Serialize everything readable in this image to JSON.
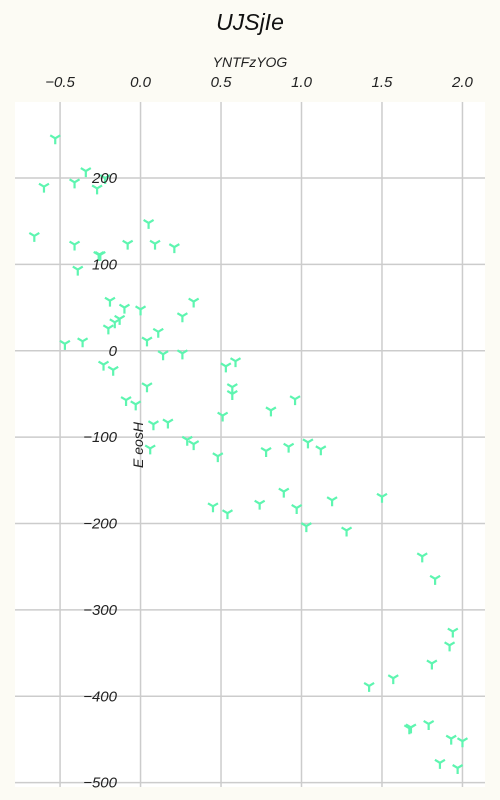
{
  "chart_data": {
    "type": "scatter",
    "title": "UJSjIe",
    "xlabel": "YNTFzYOG",
    "ylabel": "E eosH",
    "x_ticks": [
      -0.5,
      0.0,
      0.5,
      1.0,
      1.5,
      2.0
    ],
    "y_ticks": [
      -500,
      -400,
      -300,
      -200,
      -100,
      0,
      100,
      200
    ],
    "xlim": [
      -0.78,
      2.14
    ],
    "ylim": [
      -505,
      288
    ],
    "grid": true,
    "marker": "tri_down",
    "marker_color": "#5ef5b0",
    "background": "#fcfbf4",
    "plot_background": "#ffffff",
    "series": [
      {
        "x": [
          -0.53,
          -0.6,
          -0.66,
          -0.41,
          -0.34,
          -0.27,
          -0.22,
          -0.41,
          -0.39,
          -0.26,
          0.05,
          -0.08,
          0.09,
          0.21,
          -0.25,
          -0.19,
          -0.1,
          0.0,
          0.26,
          0.33,
          -0.47,
          -0.36,
          -0.16,
          -0.2,
          -0.13,
          0.04,
          0.11,
          0.14,
          0.26,
          -0.23,
          -0.17,
          -0.09,
          0.04,
          -0.03,
          0.08,
          0.17,
          0.29,
          0.33,
          0.06,
          0.53,
          0.59,
          0.57,
          0.57,
          0.51,
          0.48,
          0.45,
          0.54,
          0.81,
          0.96,
          0.92,
          1.04,
          1.12,
          0.78,
          0.74,
          0.89,
          0.97,
          1.03,
          1.19,
          1.28,
          1.5,
          1.75,
          1.83,
          1.94,
          1.92,
          1.81,
          1.42,
          1.57,
          1.68,
          1.79,
          1.93,
          2.0,
          1.86,
          1.97,
          1.67
        ],
        "y": [
          246,
          190,
          133,
          195,
          208,
          188,
          200,
          123,
          94,
          111,
          148,
          124,
          124,
          120,
          111,
          58,
          50,
          48,
          40,
          57,
          8,
          11,
          33,
          26,
          37,
          12,
          22,
          -4,
          -3,
          -16,
          -22,
          -57,
          -41,
          -62,
          -85,
          -83,
          -103,
          -108,
          -113,
          -18,
          -12,
          -42,
          -50,
          -75,
          -122,
          -180,
          -188,
          -69,
          -56,
          -111,
          -106,
          -114,
          -116,
          -177,
          -163,
          -182,
          -203,
          -173,
          -208,
          -169,
          -238,
          -264,
          -325,
          -341,
          -362,
          -388,
          -379,
          -436,
          -432,
          -449,
          -452,
          -477,
          -483,
          -437
        ]
      }
    ]
  }
}
